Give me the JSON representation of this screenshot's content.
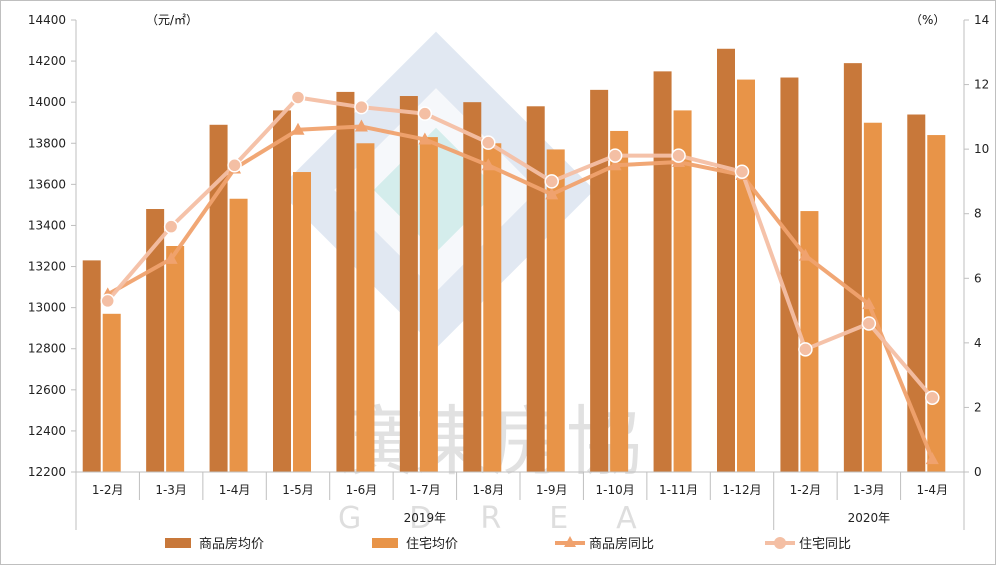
{
  "chart_data": {
    "type": "bar",
    "categories": [
      "1-2月",
      "1-3月",
      "1-4月",
      "1-5月",
      "1-6月",
      "1-7月",
      "1-8月",
      "1-9月",
      "1-10月",
      "1-11月",
      "1-12月",
      "1-2月",
      "1-3月",
      "1-4月"
    ],
    "groups": [
      {
        "label": "2019年",
        "from": 0,
        "to": 10
      },
      {
        "label": "2020年",
        "from": 11,
        "to": 13
      }
    ],
    "left_unit": "（元/㎡）",
    "right_unit": "（%）",
    "left_axis": {
      "min": 12200,
      "max": 14400,
      "step": 200
    },
    "right_axis": {
      "min": 0,
      "max": 14,
      "step": 2
    },
    "series": [
      {
        "name": "商品房均价",
        "kind": "bar",
        "axis": "left",
        "color": "#c8783a",
        "values": [
          13230,
          13480,
          13890,
          13960,
          14050,
          14030,
          14000,
          13980,
          14060,
          14150,
          14260,
          14120,
          14190,
          13940
        ]
      },
      {
        "name": "住宅均价",
        "kind": "bar",
        "axis": "left",
        "color": "#e89448",
        "values": [
          12970,
          13300,
          13530,
          13660,
          13800,
          13830,
          13800,
          13770,
          13860,
          13960,
          14110,
          13470,
          13900,
          13840
        ]
      },
      {
        "name": "商品房同比",
        "kind": "line",
        "axis": "right",
        "color": "#f0a26e",
        "marker": "triangle",
        "values": [
          5.5,
          6.6,
          9.4,
          10.6,
          10.7,
          10.3,
          9.5,
          8.6,
          9.5,
          9.6,
          9.2,
          6.7,
          5.2,
          0.4
        ]
      },
      {
        "name": "住宅同比",
        "kind": "line",
        "axis": "right",
        "color": "#f4bfa4",
        "marker": "circle",
        "values": [
          5.3,
          7.6,
          9.5,
          11.6,
          11.3,
          11.1,
          10.2,
          9.0,
          9.8,
          9.8,
          9.3,
          3.8,
          4.6,
          2.3
        ]
      }
    ],
    "legend_position": "bottom"
  },
  "watermark": {
    "text": "廣東房協",
    "sub": "GDREA"
  }
}
